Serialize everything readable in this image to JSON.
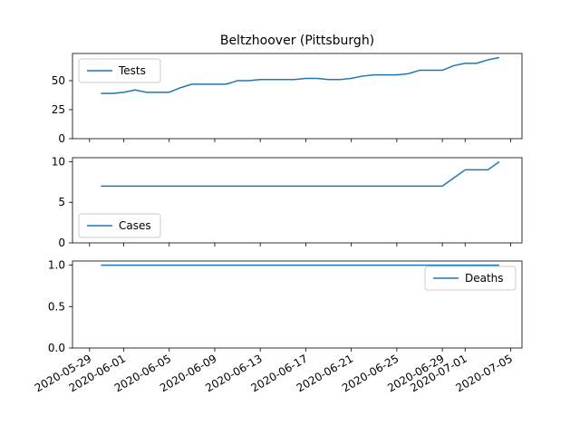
{
  "title": "Beltzhoover (Pittsburgh)",
  "x_tick_labels": [
    "2020-05-29",
    "2020-06-01",
    "2020-06-05",
    "2020-06-09",
    "2020-06-13",
    "2020-06-17",
    "2020-06-21",
    "2020-06-25",
    "2020-06-29",
    "2020-07-01",
    "2020-07-05"
  ],
  "x_tick_dates": [
    "2020-05-29",
    "2020-06-01",
    "2020-06-05",
    "2020-06-09",
    "2020-06-13",
    "2020-06-17",
    "2020-06-21",
    "2020-06-25",
    "2020-06-29",
    "2020-07-01",
    "2020-07-05"
  ],
  "line_color": "#1f77b4",
  "chart_data": [
    {
      "type": "line",
      "series": [
        {
          "name": "Tests",
          "x": [
            "2020-05-30",
            "2020-05-31",
            "2020-06-01",
            "2020-06-02",
            "2020-06-03",
            "2020-06-04",
            "2020-06-05",
            "2020-06-06",
            "2020-06-07",
            "2020-06-08",
            "2020-06-09",
            "2020-06-10",
            "2020-06-11",
            "2020-06-12",
            "2020-06-13",
            "2020-06-14",
            "2020-06-15",
            "2020-06-16",
            "2020-06-17",
            "2020-06-18",
            "2020-06-19",
            "2020-06-20",
            "2020-06-21",
            "2020-06-22",
            "2020-06-23",
            "2020-06-24",
            "2020-06-25",
            "2020-06-26",
            "2020-06-27",
            "2020-06-28",
            "2020-06-29",
            "2020-06-30",
            "2020-07-01",
            "2020-07-02",
            "2020-07-03",
            "2020-07-04"
          ],
          "values": [
            39,
            39,
            40,
            42,
            40,
            40,
            40,
            44,
            47,
            47,
            47,
            47,
            50,
            50,
            51,
            51,
            51,
            51,
            52,
            52,
            51,
            51,
            52,
            54,
            55,
            55,
            55,
            56,
            59,
            59,
            59,
            63,
            65,
            65,
            68,
            70
          ]
        }
      ],
      "yticks": [
        0,
        25,
        50
      ],
      "ylim": [
        0,
        73.5
      ],
      "legend": "upper-left"
    },
    {
      "type": "line",
      "series": [
        {
          "name": "Cases",
          "x": [
            "2020-05-30",
            "2020-06-29",
            "2020-07-01",
            "2020-07-03",
            "2020-07-04"
          ],
          "values": [
            7,
            7,
            9,
            9,
            10
          ]
        }
      ],
      "yticks": [
        0,
        5,
        10
      ],
      "ylim": [
        0,
        10.5
      ],
      "legend": "lower-left"
    },
    {
      "type": "line",
      "series": [
        {
          "name": "Deaths",
          "x": [
            "2020-05-30",
            "2020-07-04"
          ],
          "values": [
            1,
            1
          ]
        }
      ],
      "yticks": [
        "0.0",
        "0.5",
        "1.0"
      ],
      "ylim": [
        0,
        1.05
      ],
      "legend": "upper-right"
    }
  ]
}
